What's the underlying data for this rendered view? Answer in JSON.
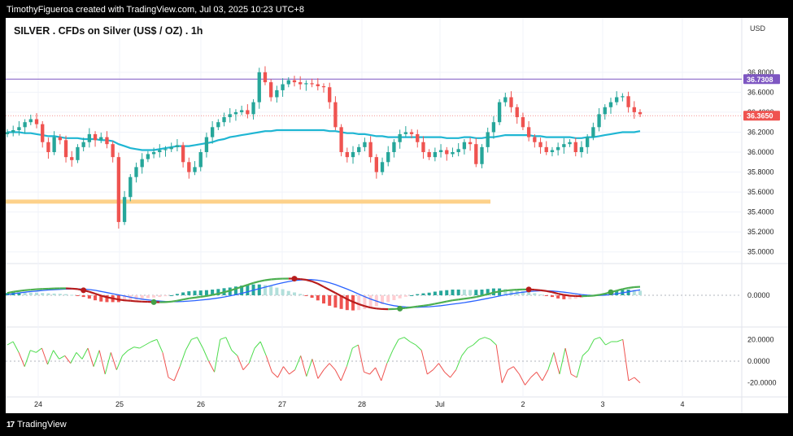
{
  "header": {
    "creator_line": "TimothyFigueroa created with TradingView.com, Jul 03, 2025 10:23 UTC+8"
  },
  "footer": {
    "brand": "TradingView",
    "logo_glyph": "17"
  },
  "chart_data": {
    "type": "candlestick",
    "title": "SILVER . CFDs on Silver (US$ / OZ) . 1h",
    "currency": "USD",
    "price_axis": {
      "ticks": [
        "36.8000",
        "36.6000",
        "36.4000",
        "36.2000",
        "36.0000",
        "35.8000",
        "35.6000",
        "35.4000",
        "35.2000",
        "35.0000"
      ],
      "ylim": [
        34.9,
        37.1
      ]
    },
    "x_labels": [
      "24",
      "25",
      "26",
      "27",
      "28",
      "Jul",
      "2",
      "3",
      "4"
    ],
    "price_series": [
      36.2,
      36.22,
      36.25,
      36.3,
      36.33,
      36.28,
      36.1,
      36.0,
      36.15,
      36.12,
      35.95,
      35.92,
      36.05,
      36.1,
      36.18,
      36.12,
      36.15,
      36.08,
      35.95,
      35.3,
      35.55,
      35.75,
      35.85,
      35.93,
      35.98,
      36.0,
      36.02,
      36.03,
      36.05,
      36.07,
      35.9,
      35.8,
      35.85,
      36.0,
      36.15,
      36.25,
      36.3,
      36.35,
      36.38,
      36.4,
      36.42,
      36.38,
      36.5,
      36.8,
      36.7,
      36.55,
      36.62,
      36.68,
      36.72,
      36.7,
      36.68,
      36.69,
      36.68,
      36.66,
      36.65,
      36.5,
      36.25,
      36.0,
      35.95,
      36.0,
      36.05,
      36.1,
      35.95,
      35.8,
      35.9,
      36.0,
      36.1,
      36.18,
      36.2,
      36.18,
      36.1,
      36.0,
      35.95,
      36.0,
      36.02,
      35.98,
      36.0,
      36.03,
      36.1,
      36.08,
      35.88,
      36.05,
      36.2,
      36.3,
      36.5,
      36.55,
      36.45,
      36.35,
      36.25,
      36.15,
      36.1,
      36.05,
      36.0,
      36.02,
      36.05,
      36.08,
      36.1,
      36.0,
      36.05,
      36.15,
      36.25,
      36.38,
      36.45,
      36.5,
      36.55,
      36.56,
      36.45,
      36.4,
      36.38
    ],
    "ema_series": [
      36.2,
      36.2,
      36.2,
      36.19,
      36.19,
      36.18,
      36.17,
      36.16,
      36.16,
      36.15,
      36.14,
      36.14,
      36.14,
      36.13,
      36.13,
      36.13,
      36.12,
      36.12,
      36.11,
      36.08,
      36.06,
      36.04,
      36.03,
      36.02,
      36.02,
      36.02,
      36.03,
      36.04,
      36.05,
      36.06,
      36.06,
      36.06,
      36.07,
      36.08,
      36.09,
      36.1,
      36.12,
      36.13,
      36.15,
      36.16,
      36.17,
      36.18,
      36.19,
      36.2,
      36.21,
      36.21,
      36.22,
      36.22,
      36.22,
      36.22,
      36.22,
      36.22,
      36.22,
      36.22,
      36.22,
      36.21,
      36.21,
      36.2,
      36.19,
      36.19,
      36.18,
      36.18,
      36.17,
      36.16,
      36.16,
      36.15,
      36.15,
      36.15,
      36.15,
      36.15,
      36.15,
      36.15,
      36.15,
      36.15,
      36.15,
      36.14,
      36.14,
      36.14,
      36.15,
      36.15,
      36.14,
      36.14,
      36.15,
      36.15,
      36.16,
      36.17,
      36.17,
      36.17,
      36.17,
      36.17,
      36.16,
      36.16,
      36.15,
      36.15,
      36.15,
      36.15,
      36.15,
      36.14,
      36.14,
      36.15,
      36.15,
      36.16,
      36.17,
      36.18,
      36.19,
      36.2,
      36.2,
      36.2,
      36.21
    ],
    "resistance_line": 36.7308,
    "support_zone": 35.5,
    "last_price": 36.365,
    "price_labels": {
      "resistance": "36.7308",
      "last": "36.3650"
    },
    "colors": {
      "up": "#26a69a",
      "down": "#ef5350",
      "ema": "#1fb6d3",
      "resistance": "#7e57c2",
      "support": "#fdd18a",
      "macd_fast": "#4caf50",
      "macd_down": "#b71c1c",
      "macd_signal": "#2962ff",
      "osc_up": "#4cdc4c",
      "osc_down": "#ef5350",
      "dot_up": "#43a047",
      "dot_down": "#b71c1c"
    },
    "macd": {
      "zero_label": "0.0000",
      "line": [
        0.3,
        0.45,
        0.55,
        0.65,
        0.72,
        0.78,
        0.82,
        0.85,
        0.88,
        0.9,
        0.9,
        0.86,
        0.8,
        0.65,
        0.45,
        0.2,
        -0.05,
        -0.25,
        -0.4,
        -0.55,
        -0.65,
        -0.72,
        -0.78,
        -0.82,
        -0.85,
        -0.88,
        -0.9,
        -0.88,
        -0.82,
        -0.7,
        -0.55,
        -0.4,
        -0.3,
        -0.2,
        -0.1,
        0.05,
        0.2,
        0.4,
        0.6,
        0.85,
        1.1,
        1.35,
        1.6,
        1.8,
        1.95,
        2.05,
        2.12,
        2.15,
        2.16,
        2.15,
        2.1,
        2.0,
        1.8,
        1.5,
        1.1,
        0.7,
        0.3,
        -0.1,
        -0.5,
        -0.85,
        -1.15,
        -1.4,
        -1.6,
        -1.72,
        -1.78,
        -1.8,
        -1.78,
        -1.72,
        -1.65,
        -1.55,
        -1.45,
        -1.35,
        -1.25,
        -1.1,
        -0.95,
        -0.8,
        -0.65,
        -0.55,
        -0.45,
        -0.35,
        -0.22,
        -0.05,
        0.15,
        0.35,
        0.5,
        0.6,
        0.68,
        0.72,
        0.75,
        0.75,
        0.72,
        0.65,
        0.55,
        0.4,
        0.2,
        0.05,
        -0.05,
        -0.1,
        -0.12,
        -0.1,
        -0.05,
        0.05,
        0.2,
        0.4,
        0.6,
        0.8,
        0.95,
        1.05,
        1.1
      ],
      "signal": [
        0.1,
        0.2,
        0.3,
        0.4,
        0.48,
        0.55,
        0.62,
        0.68,
        0.73,
        0.77,
        0.8,
        0.82,
        0.82,
        0.8,
        0.74,
        0.64,
        0.5,
        0.35,
        0.2,
        0.05,
        -0.1,
        -0.25,
        -0.38,
        -0.5,
        -0.6,
        -0.68,
        -0.75,
        -0.8,
        -0.82,
        -0.82,
        -0.8,
        -0.75,
        -0.7,
        -0.62,
        -0.55,
        -0.45,
        -0.35,
        -0.22,
        -0.08,
        0.08,
        0.25,
        0.45,
        0.65,
        0.85,
        1.05,
        1.25,
        1.45,
        1.62,
        1.78,
        1.9,
        1.98,
        2.02,
        2.02,
        1.95,
        1.82,
        1.62,
        1.38,
        1.1,
        0.8,
        0.48,
        0.15,
        -0.18,
        -0.48,
        -0.75,
        -1.0,
        -1.2,
        -1.35,
        -1.45,
        -1.52,
        -1.55,
        -1.55,
        -1.52,
        -1.48,
        -1.42,
        -1.35,
        -1.25,
        -1.15,
        -1.05,
        -0.95,
        -0.82,
        -0.7,
        -0.55,
        -0.4,
        -0.25,
        -0.1,
        0.05,
        0.18,
        0.3,
        0.4,
        0.48,
        0.54,
        0.58,
        0.58,
        0.55,
        0.48,
        0.4,
        0.3,
        0.2,
        0.1,
        0.02,
        -0.02,
        -0.02,
        0.02,
        0.1,
        0.2,
        0.32,
        0.45,
        0.58,
        0.7
      ],
      "cross_up_index": [
        25,
        67,
        103
      ],
      "cross_down_index": [
        13,
        49,
        89
      ]
    },
    "oscillator": {
      "ticks": [
        "20.0000",
        "0.0000",
        "-20.0000"
      ],
      "ylim": [
        -30,
        30
      ],
      "values": [
        15,
        18,
        8,
        -5,
        10,
        8,
        12,
        -3,
        10,
        2,
        5,
        -2,
        8,
        2,
        12,
        -5,
        10,
        -12,
        8,
        -8,
        5,
        10,
        13,
        12,
        15,
        18,
        20,
        8,
        -15,
        -18,
        -5,
        10,
        20,
        22,
        12,
        0,
        -10,
        20,
        22,
        10,
        5,
        -8,
        -2,
        12,
        18,
        5,
        -10,
        -15,
        -5,
        -12,
        -8,
        5,
        -14,
        2,
        -16,
        -8,
        -2,
        -8,
        -18,
        -5,
        12,
        15,
        -10,
        -12,
        -6,
        -18,
        -2,
        10,
        20,
        22,
        18,
        15,
        10,
        -12,
        -8,
        -2,
        -10,
        -15,
        -8,
        5,
        12,
        15,
        20,
        22,
        20,
        15,
        -20,
        -8,
        -5,
        -12,
        -22,
        -15,
        -10,
        -18,
        -8,
        8,
        -12,
        12,
        -12,
        -15,
        5,
        10,
        20,
        22,
        15,
        18,
        18,
        20,
        -18,
        -15,
        -20
      ]
    }
  }
}
